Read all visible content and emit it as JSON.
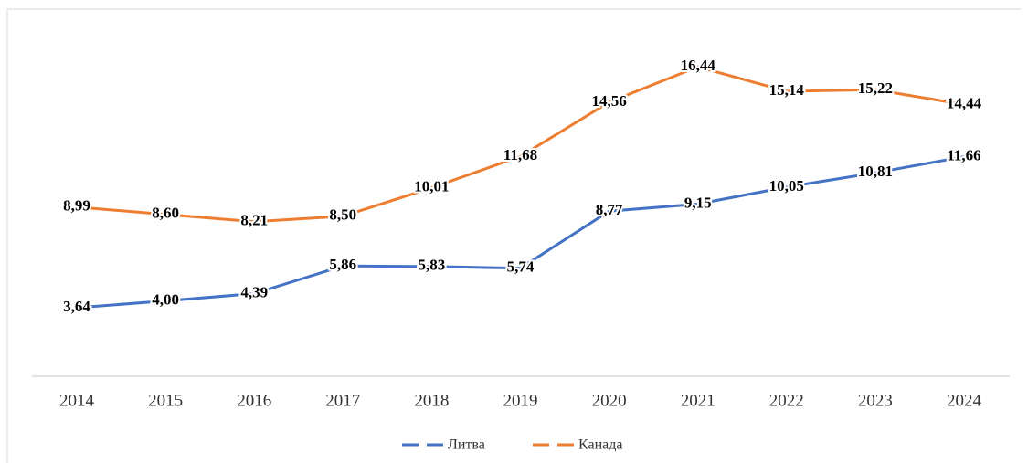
{
  "chart_data": {
    "type": "line",
    "categories": [
      "2014",
      "2015",
      "2016",
      "2017",
      "2018",
      "2019",
      "2020",
      "2021",
      "2022",
      "2023",
      "2024"
    ],
    "series": [
      {
        "name": "Литва",
        "color": "#4472c4",
        "values": [
          3.64,
          4.0,
          4.39,
          5.86,
          5.83,
          5.74,
          8.77,
          9.15,
          10.05,
          10.81,
          11.66
        ],
        "value_labels": [
          "3,64",
          "4,00",
          "4,39",
          "5,86",
          "5,83",
          "5,74",
          "8,77",
          "9,15",
          "10,05",
          "10,81",
          "11,66"
        ]
      },
      {
        "name": "Канада",
        "color": "#ed7d31",
        "values": [
          8.99,
          8.6,
          8.21,
          8.5,
          10.01,
          11.68,
          14.56,
          16.44,
          15.14,
          15.22,
          14.44
        ],
        "value_labels": [
          "8,99",
          "8,60",
          "8,21",
          "8,50",
          "10,01",
          "11,68",
          "14,56",
          "16,44",
          "15,14",
          "15,22",
          "14,44"
        ]
      }
    ],
    "ylim": [
      0,
      18
    ],
    "legend": "bottom"
  }
}
